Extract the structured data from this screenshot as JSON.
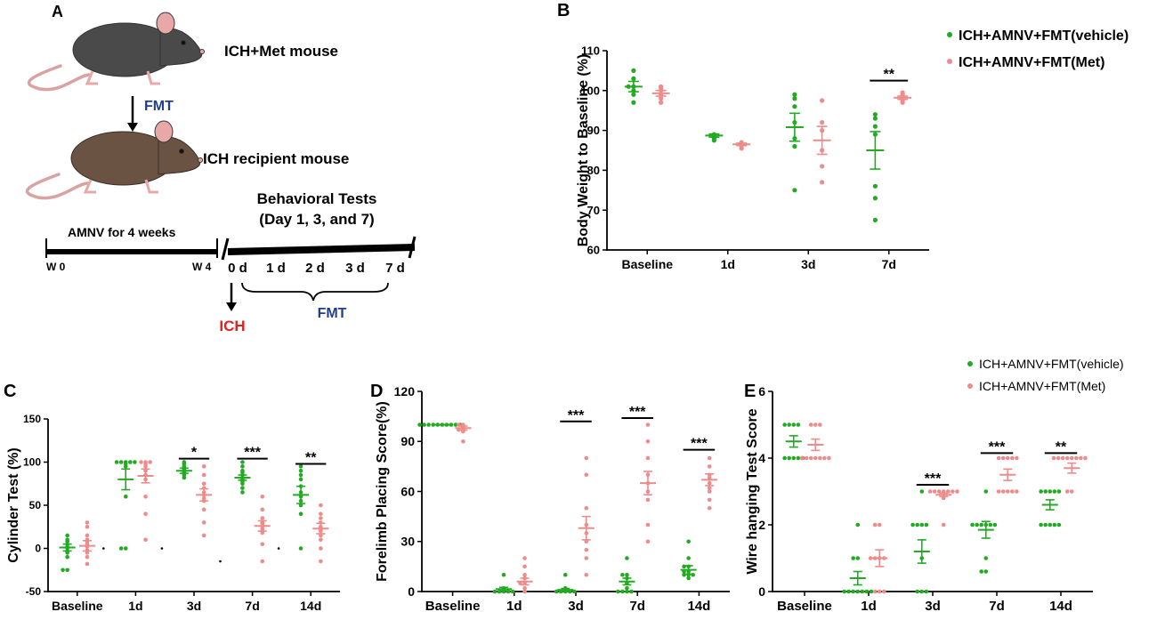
{
  "colors": {
    "green": "#22aa22",
    "pink": "#ee8b8b",
    "fmt_blue": "#1f3f8f",
    "ich_red": "#dd2222",
    "axis": "#000000",
    "mouse_a": "#4a4a4a",
    "mouse_b": "#6b5344"
  },
  "panelA": {
    "letter": "A",
    "donor_label": "ICH+Met mouse",
    "fmt_arrow_label": "FMT",
    "recipient_label": "ICH recipient mouse",
    "amnv_label": "AMNV for 4 weeks",
    "w0": "W 0",
    "w4": "W 4",
    "behavior_line1": "Behavioral Tests",
    "behavior_line2": "(Day 1, 3, and 7)",
    "timeline_days": [
      "0 d",
      "1 d",
      "2 d",
      "3 d",
      "7 d"
    ],
    "ich_label": "ICH",
    "fmt_bracket_label": "FMT",
    "donor_icon": "mouse-icon",
    "recipient_icon": "mouse-icon"
  },
  "legend_top": [
    "ICH+AMNV+FMT(vehicle)",
    "ICH+AMNV+FMT(Met)"
  ],
  "legend_bottom": [
    "ICH+AMNV+FMT(vehicle)",
    "ICH+AMNV+FMT(Met)"
  ],
  "chart_data": [
    {
      "id": "B",
      "type": "scatter",
      "letter": "B",
      "ylabel": "Body Weight to Baseline (%)",
      "xlabel": "",
      "ylim": [
        60,
        110
      ],
      "yticks": [
        60,
        70,
        80,
        90,
        100,
        110
      ],
      "yticklabels": [
        "60",
        "70",
        "80",
        "90",
        "100",
        "110"
      ],
      "categories": [
        "Baseline",
        "1d",
        "3d",
        "7d"
      ],
      "series": [
        {
          "name": "ICH+AMNV+FMT(vehicle)",
          "color": "green",
          "points": [
            [
              101,
              105,
              103,
              101,
              100,
              99,
              97
            ],
            [
              89,
              88.5,
              88.3,
              88,
              87.5
            ],
            [
              99,
              98,
              96,
              92,
              88,
              86,
              75
            ],
            [
              94,
              93,
              91,
              89,
              76,
              73,
              67.5
            ]
          ],
          "mean": [
            101,
            88.7,
            90.8,
            85
          ],
          "sem": [
            1.3,
            0.4,
            3.5,
            4.7
          ]
        },
        {
          "name": "ICH+AMNV+FMT(Met)",
          "color": "pink",
          "points": [
            [
              101,
              100.5,
              100,
              99,
              98,
              97
            ],
            [
              87,
              86.5,
              86.2,
              86,
              85.5
            ],
            [
              97.5,
              92,
              90,
              85,
              81,
              77
            ],
            [
              99.5,
              99,
              98.5,
              98,
              97.5,
              97
            ]
          ],
          "mean": [
            99.3,
            86.5,
            87.5,
            98.2
          ],
          "sem": [
            0.7,
            0.3,
            3.5,
            0.4
          ]
        }
      ],
      "annotations": [
        {
          "category": "7d",
          "text": "**",
          "y": 102.5
        }
      ]
    },
    {
      "id": "C",
      "type": "scatter",
      "letter": "C",
      "ylabel": "Cylinder Test (%)",
      "xlabel": "",
      "ylim": [
        -50,
        150
      ],
      "yticks": [
        -50,
        0,
        50,
        100,
        150
      ],
      "yticklabels": [
        "-50",
        "0",
        "50",
        "100",
        "150"
      ],
      "categories": [
        "Baseline",
        "1d",
        "3d",
        "7d",
        "14d"
      ],
      "series": [
        {
          "name": "ICH+AMNV+FMT(vehicle)",
          "color": "green",
          "points": [
            [
              15,
              10,
              8,
              5,
              2,
              0,
              -3,
              -5,
              -10,
              -25,
              -25
            ],
            [
              100,
              100,
              100,
              100,
              100,
              98,
              95,
              60,
              0,
              0
            ],
            [
              100,
              98,
              95,
              93,
              92,
              90,
              88,
              85,
              82
            ],
            [
              100,
              95,
              90,
              88,
              85,
              82,
              80,
              78,
              75,
              70,
              65
            ],
            [
              95,
              90,
              85,
              80,
              72,
              65,
              60,
              55,
              50,
              40,
              0
            ]
          ],
          "mean": [
            1,
            80,
            90,
            82,
            62
          ],
          "sem": [
            4,
            12,
            3,
            3,
            10
          ]
        },
        {
          "name": "ICH+AMNV+FMT(Met)",
          "color": "pink",
          "points": [
            [
              30,
              25,
              15,
              10,
              8,
              5,
              2,
              -2,
              -5,
              -10,
              -18
            ],
            [
              100,
              100,
              100,
              98,
              95,
              90,
              85,
              80,
              60,
              40,
              10
            ],
            [
              95,
              85,
              75,
              70,
              65,
              62,
              58,
              55,
              45,
              30,
              15
            ],
            [
              60,
              45,
              35,
              30,
              28,
              25,
              22,
              20,
              18,
              5,
              -15
            ],
            [
              50,
              40,
              35,
              30,
              25,
              22,
              20,
              15,
              10,
              0,
              -15
            ]
          ],
          "mean": [
            3,
            84,
            62,
            26,
            23
          ],
          "sem": [
            6,
            8,
            7,
            6,
            6
          ]
        }
      ],
      "annotations": [
        {
          "category": "3d",
          "text": "*",
          "y": 104
        },
        {
          "category": "7d",
          "text": "***",
          "y": 104
        },
        {
          "category": "14d",
          "text": "**",
          "y": 98
        }
      ],
      "dots": [
        {
          "category": "Baseline",
          "side": "right",
          "y": 0
        },
        {
          "category": "1d",
          "side": "right",
          "y": 0
        },
        {
          "category": "3d",
          "side": "right",
          "y": -15
        },
        {
          "category": "7d",
          "side": "right",
          "y": 0
        }
      ]
    },
    {
      "id": "D",
      "type": "scatter",
      "letter": "D",
      "ylabel": "Forelimb Placing Score(%)",
      "xlabel": "",
      "ylim": [
        0,
        120
      ],
      "yticks": [
        0,
        30,
        60,
        90,
        120
      ],
      "yticklabels": [
        "0",
        "30",
        "60",
        "90",
        "120"
      ],
      "categories": [
        "Baseline",
        "1d",
        "3d",
        "7d",
        "14d"
      ],
      "series": [
        {
          "name": "ICH+AMNV+FMT(vehicle)",
          "color": "green",
          "points": [
            [
              100,
              100,
              100,
              100,
              100,
              100,
              100,
              100,
              100,
              100
            ],
            [
              10,
              2,
              1,
              0,
              0,
              0,
              0,
              0
            ],
            [
              10,
              2,
              1,
              0,
              0,
              0,
              0,
              0
            ],
            [
              20,
              10,
              10,
              8,
              5,
              2,
              0,
              0,
              0,
              0
            ],
            [
              30,
              20,
              15,
              15,
              12,
              12,
              10,
              10,
              10,
              8
            ]
          ],
          "mean": [
            100,
            1.5,
            1,
            6,
            13
          ],
          "sem": [
            0,
            1,
            0.8,
            2,
            2.5
          ]
        },
        {
          "name": "ICH+AMNV+FMT(Met)",
          "color": "pink",
          "points": [
            [
              100,
              100,
              99,
              98,
              97,
              97,
              96,
              90
            ],
            [
              20,
              15,
              10,
              8,
              5,
              5,
              2,
              0
            ],
            [
              80,
              70,
              50,
              40,
              35,
              30,
              25,
              20,
              10
            ],
            [
              100,
              90,
              80,
              70,
              65,
              60,
              55,
              40,
              30
            ],
            [
              80,
              75,
              70,
              68,
              65,
              62,
              60,
              55,
              50
            ]
          ],
          "mean": [
            98,
            6,
            38,
            65,
            67
          ],
          "sem": [
            1.2,
            2,
            7,
            7,
            3.5
          ]
        }
      ],
      "annotations": [
        {
          "category": "3d",
          "text": "***",
          "y": 102
        },
        {
          "category": "7d",
          "text": "***",
          "y": 104
        },
        {
          "category": "14d",
          "text": "***",
          "y": 85
        }
      ]
    },
    {
      "id": "E",
      "type": "scatter",
      "letter": "E",
      "ylabel": "Wire hanging Test Score",
      "xlabel": "",
      "ylim": [
        0,
        6
      ],
      "yticks": [
        0,
        2,
        4,
        6
      ],
      "yticklabels": [
        "0",
        "2",
        "4",
        "6"
      ],
      "categories": [
        "Baseline",
        "1d",
        "3d",
        "7d",
        "14d"
      ],
      "series": [
        {
          "name": "ICH+AMNV+FMT(vehicle)",
          "color": "green",
          "points": [
            [
              5,
              5,
              5,
              5,
              4,
              4,
              4,
              4,
              4
            ],
            [
              2,
              1,
              1,
              0,
              0,
              0,
              0,
              0,
              0,
              0
            ],
            [
              3,
              2,
              2,
              2,
              2,
              1,
              0,
              0,
              0
            ],
            [
              3,
              2,
              2,
              2,
              2,
              1,
              0.6,
              0.6,
              2,
              2
            ],
            [
              3,
              3,
              3,
              3,
              2,
              2,
              2,
              2,
              2,
              3
            ]
          ],
          "mean": [
            4.5,
            0.4,
            1.2,
            1.85,
            2.6
          ],
          "sem": [
            0.17,
            0.2,
            0.35,
            0.25,
            0.15
          ]
        },
        {
          "name": "ICH+AMNV+FMT(Met)",
          "color": "pink",
          "points": [
            [
              5,
              5,
              5,
              4,
              4,
              4,
              4,
              4,
              4,
              4
            ],
            [
              2,
              2,
              1,
              1,
              1,
              1,
              0,
              0,
              0
            ],
            [
              3,
              3,
              3,
              3,
              3,
              3,
              3,
              2,
              2.8
            ],
            [
              4,
              4,
              4,
              4,
              4,
              3,
              3,
              3,
              3,
              3
            ],
            [
              4,
              4,
              4,
              4,
              4,
              4,
              3,
              3,
              4,
              4
            ]
          ],
          "mean": [
            4.4,
            1.0,
            2.9,
            3.5,
            3.7
          ],
          "sem": [
            0.17,
            0.25,
            0.05,
            0.17,
            0.15
          ]
        }
      ],
      "annotations": [
        {
          "category": "3d",
          "text": "***",
          "y": 3.2
        },
        {
          "category": "7d",
          "text": "***",
          "y": 4.15
        },
        {
          "category": "14d",
          "text": "**",
          "y": 4.15
        }
      ]
    }
  ]
}
